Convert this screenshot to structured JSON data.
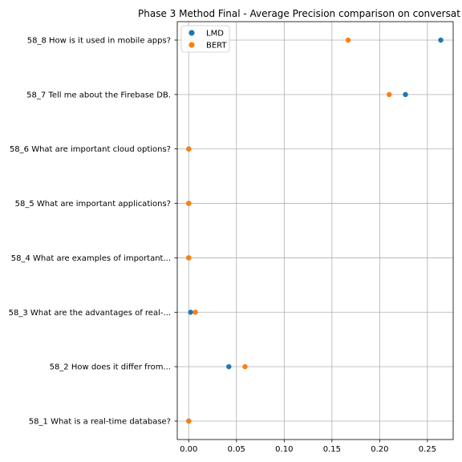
{
  "chart_data": {
    "type": "scatter",
    "title": "Phase 3 Method Final - Average Precision comparison on conversat",
    "xlabel": "",
    "ylabel": "",
    "xlim": [
      -0.012,
      0.277
    ],
    "xticks": [
      0.0,
      0.05,
      0.1,
      0.15,
      0.2,
      0.25
    ],
    "xtick_labels": [
      "0.00",
      "0.05",
      "0.10",
      "0.15",
      "0.20",
      "0.25"
    ],
    "grid": true,
    "legend_position": "upper-left",
    "categories": [
      "58_1 What is a real-time database?",
      "58_2 How does it differ from...",
      "58_3 What are the advantages of real-...",
      "58_4 What are examples of important...",
      "58_5 What are important applications?",
      "58_6 What are important cloud options?",
      "58_7 Tell me about the Firebase DB.",
      "58_8 How is it used in mobile apps?"
    ],
    "series": [
      {
        "name": "LMD",
        "color": "#1f77b4",
        "values": [
          0.0,
          0.042,
          0.002,
          0.0,
          0.0,
          0.0,
          0.227,
          0.264
        ]
      },
      {
        "name": "BERT",
        "color": "#ff7f0e",
        "values": [
          0.0,
          0.059,
          0.007,
          0.0,
          0.0,
          0.0,
          0.21,
          0.167
        ]
      }
    ]
  }
}
